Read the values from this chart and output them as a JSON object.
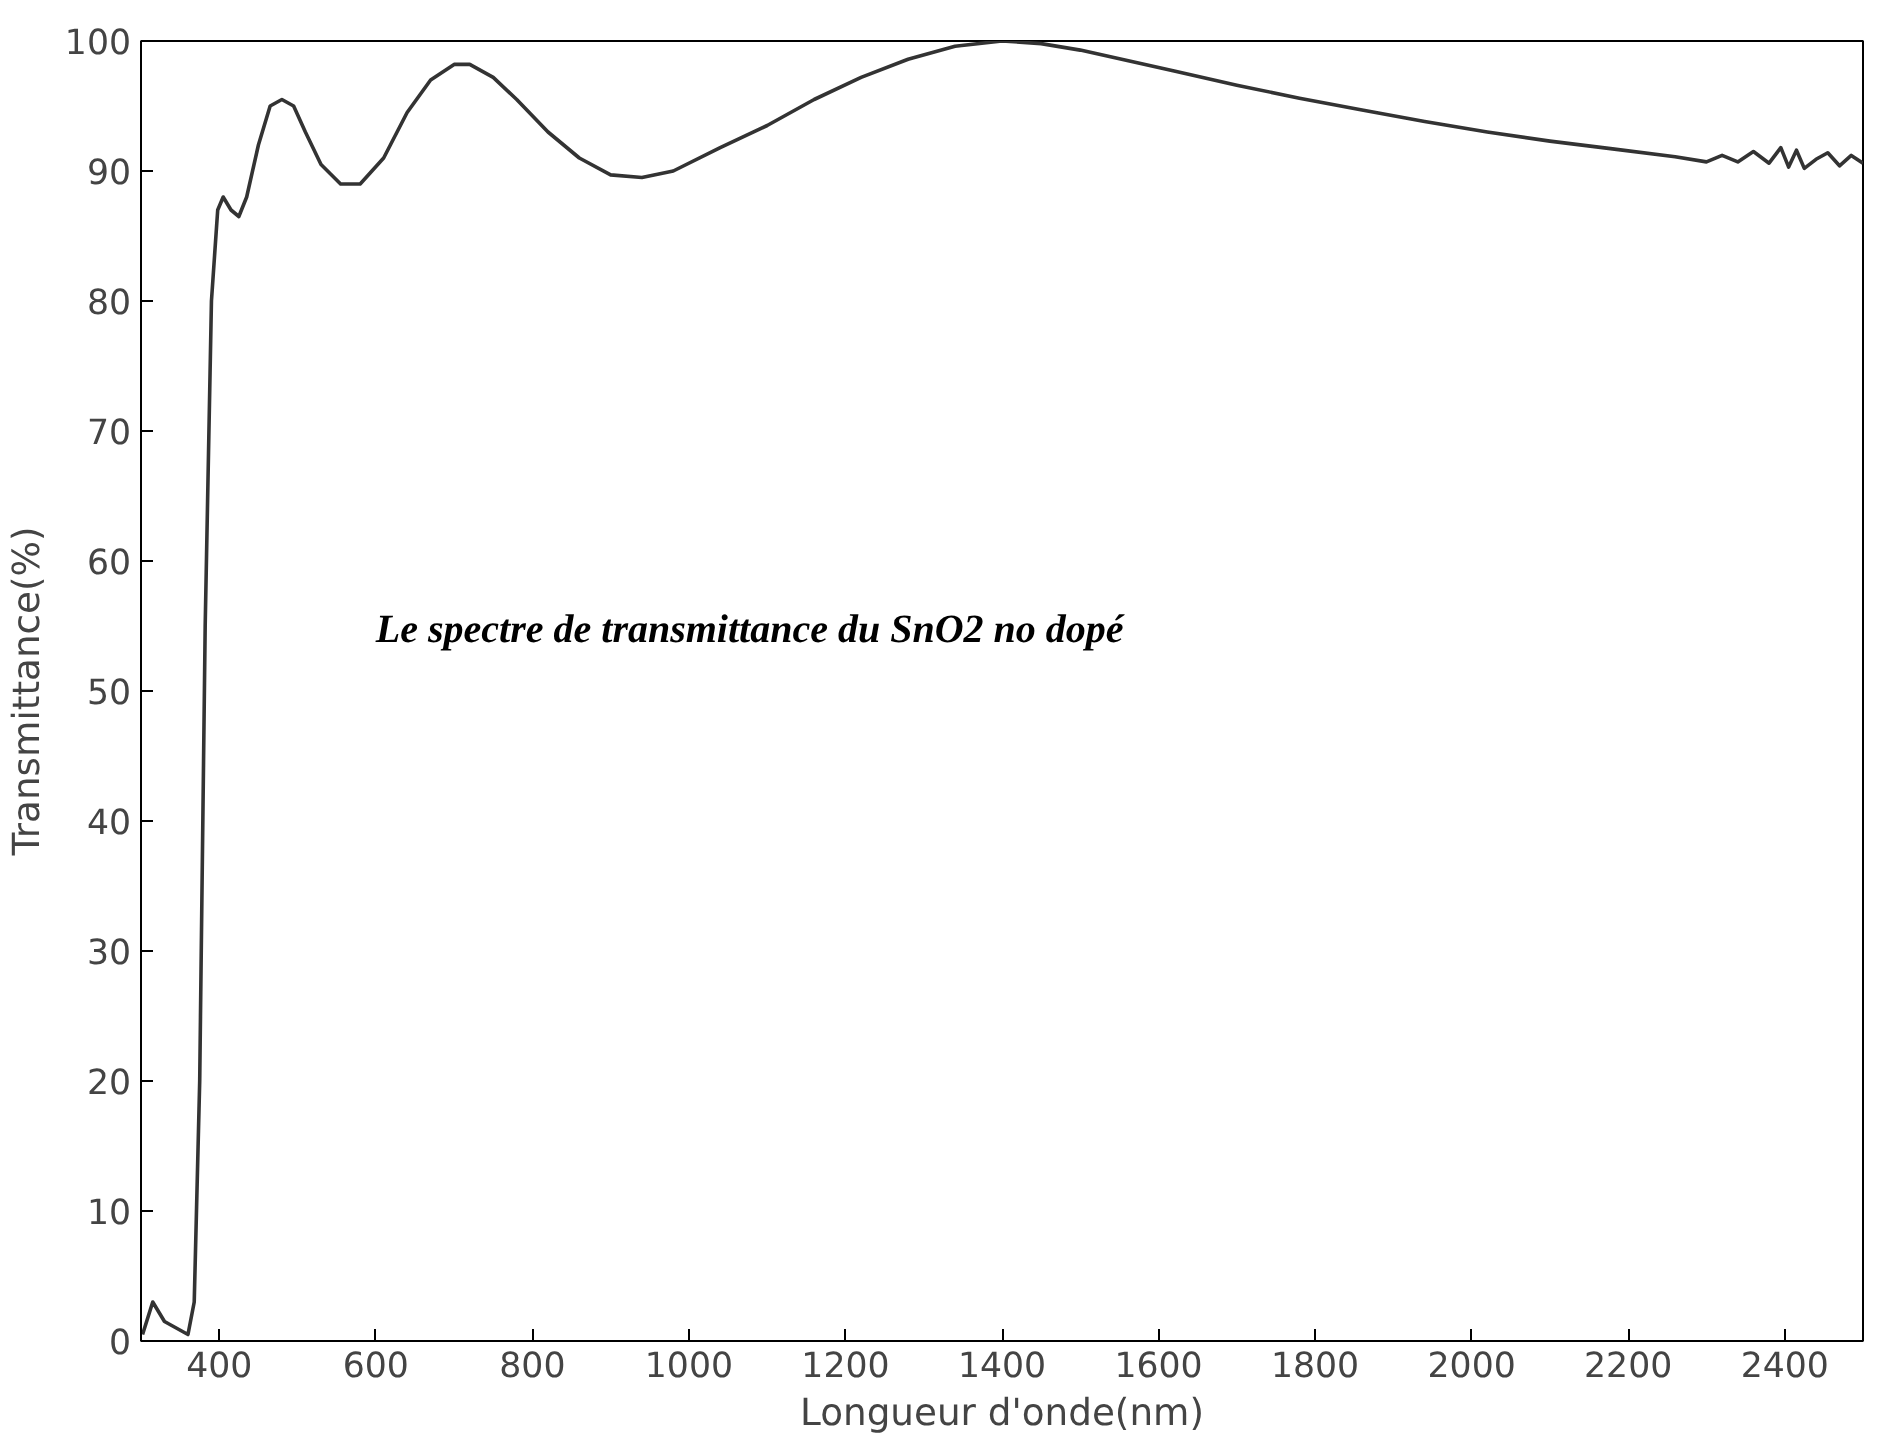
{
  "chart_data": {
    "type": "line",
    "xlabel": "Longueur d'onde(nm)",
    "ylabel": "Transmittance(%)",
    "annotations": [
      "Le spectre de transmittance du SnO2 no dopé"
    ],
    "xlim": [
      300,
      2500
    ],
    "ylim": [
      0,
      100
    ],
    "xticks": [
      400,
      600,
      800,
      1000,
      1200,
      1400,
      1600,
      1800,
      2000,
      2200,
      2400
    ],
    "yticks": [
      0,
      10,
      20,
      30,
      40,
      50,
      60,
      70,
      80,
      90,
      100
    ],
    "grid": false,
    "marker": "none",
    "line_style": "solid",
    "series": [
      {
        "color": "#333333",
        "x": [
          302,
          315,
          330,
          345,
          360,
          368,
          375,
          382,
          390,
          398,
          405,
          415,
          425,
          435,
          450,
          465,
          480,
          495,
          510,
          530,
          555,
          580,
          610,
          640,
          670,
          700,
          720,
          750,
          780,
          820,
          860,
          900,
          940,
          980,
          1040,
          1100,
          1160,
          1220,
          1280,
          1340,
          1400,
          1450,
          1500,
          1560,
          1620,
          1700,
          1780,
          1860,
          1940,
          2020,
          2100,
          2180,
          2260,
          2300,
          2320,
          2340,
          2360,
          2380,
          2395,
          2405,
          2415,
          2425,
          2440,
          2455,
          2470,
          2485,
          2500
        ],
        "values": [
          0.5,
          3,
          1.5,
          1,
          0.5,
          3,
          20,
          55,
          80,
          87,
          88,
          87,
          86.5,
          88,
          92,
          95,
          95.5,
          95,
          93,
          90.5,
          89,
          89,
          91,
          94.5,
          97,
          98.2,
          98.2,
          97.2,
          95.5,
          93,
          91,
          89.7,
          89.5,
          90,
          91.8,
          93.5,
          95.5,
          97.2,
          98.6,
          99.6,
          100,
          99.8,
          99.3,
          98.5,
          97.7,
          96.6,
          95.6,
          94.7,
          93.8,
          93,
          92.3,
          91.7,
          91.1,
          90.7,
          91.2,
          90.7,
          91.5,
          90.6,
          91.8,
          90.3,
          91.6,
          90.2,
          90.9,
          91.4,
          90.4,
          91.2,
          90.6
        ]
      }
    ]
  }
}
